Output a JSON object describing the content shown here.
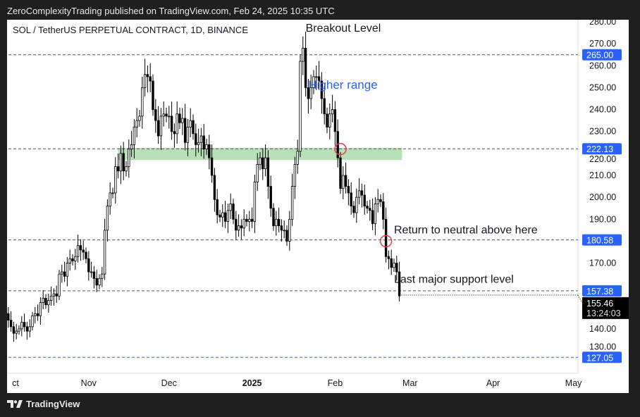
{
  "header": {
    "published": "ZeroComplexityTrading published on TradingView.com, Feb 24, 2025 10:35 UTC"
  },
  "footer": {
    "brand": "TradingView"
  },
  "chart_data": {
    "type": "candlestick",
    "title": "SOL / TetherUS PERPETUAL CONTRACT, 1D, BINANCE",
    "start_date": "2024-10-01",
    "closes": [
      147,
      144,
      141,
      138,
      139,
      140,
      143,
      141,
      139,
      141,
      146,
      147,
      146,
      152,
      154,
      151,
      153,
      155,
      156,
      155,
      165,
      166,
      164,
      170,
      172,
      171,
      173,
      178,
      176,
      175,
      172,
      166,
      166,
      163,
      160,
      163,
      165,
      185,
      196,
      202,
      202,
      214,
      212,
      220,
      212,
      214,
      222,
      224,
      232,
      235,
      237,
      250,
      256,
      255,
      253,
      240,
      235,
      228,
      237,
      238,
      237,
      237,
      230,
      229,
      238,
      234,
      236,
      225,
      232,
      235,
      229,
      224,
      225,
      228,
      222,
      224,
      218,
      210,
      199,
      192,
      191,
      193,
      189,
      194,
      197,
      190,
      185,
      187,
      186,
      190,
      189,
      190,
      189,
      207,
      215,
      218,
      213,
      218,
      205,
      195,
      187,
      190,
      187,
      185,
      185,
      180,
      190,
      205,
      215,
      221,
      262,
      268,
      250,
      245,
      250,
      255,
      255,
      253,
      245,
      238,
      232,
      238,
      240,
      230,
      218,
      204,
      210,
      205,
      202,
      196,
      193,
      200,
      203,
      201,
      196,
      195,
      194,
      188,
      197,
      199,
      198,
      190,
      173,
      172,
      168,
      170,
      166,
      155
    ],
    "ylim": [
      122,
      282
    ],
    "y_ticks": [
      "280.00",
      "270.00",
      "260.00",
      "250.00",
      "240.00",
      "230.00",
      "220.00",
      "210.00",
      "200.00",
      "190.00",
      "170.00",
      "140.00",
      "130.00"
    ],
    "x_ticks": [
      {
        "label": "ct",
        "date": "2024-10-01"
      },
      {
        "label": "Nov",
        "date": "2024-11-01"
      },
      {
        "label": "Dec",
        "date": "2024-12-01"
      },
      {
        "label": "2025",
        "date": "2025-01-01",
        "bold": true
      },
      {
        "label": "Feb",
        "date": "2025-02-01"
      },
      {
        "label": "Mar",
        "date": "2025-03-01"
      },
      {
        "label": "Apr",
        "date": "2025-04-01"
      },
      {
        "label": "May",
        "date": "2025-05-01"
      }
    ],
    "x_end": "2025-05-05",
    "levels": [
      {
        "value": 265.0,
        "label": "265.00",
        "line": "#555555"
      },
      {
        "value": 222.13,
        "label": "222.13",
        "line": "#555555"
      },
      {
        "value": 180.58,
        "label": "180.58",
        "line": "#555555"
      },
      {
        "value": 157.38,
        "label": "157.38",
        "line": "#555555"
      },
      {
        "value": 127.05,
        "label": "127.05",
        "line": "#2962ff"
      }
    ],
    "last_price": {
      "value": 155.46,
      "label": "155.46",
      "countdown": "13:24:03"
    },
    "zone": {
      "from": 217,
      "to": 222.5,
      "start": "2024-11-12",
      "end": "2025-02-26",
      "color": "#b8e0b8"
    },
    "circles": [
      {
        "date": "2025-02-03",
        "value": 222
      },
      {
        "date": "2025-02-20",
        "value": 180
      }
    ],
    "annotations": [
      {
        "text": "Breakout Level",
        "date": "2025-01-21",
        "value": 275.5,
        "color": "#131722"
      },
      {
        "text": "Higher range",
        "date": "2025-01-22",
        "value": 249.5,
        "color": "#2962ff"
      },
      {
        "text": "Return to neutral above here",
        "date": "2025-02-23",
        "value": 183.5,
        "color": "#131722"
      },
      {
        "text": "Last major support level",
        "date": "2025-02-23",
        "value": 161,
        "color": "#131722"
      }
    ],
    "colors": {
      "candle": "#000000",
      "label_bg": "#2962ff"
    }
  }
}
